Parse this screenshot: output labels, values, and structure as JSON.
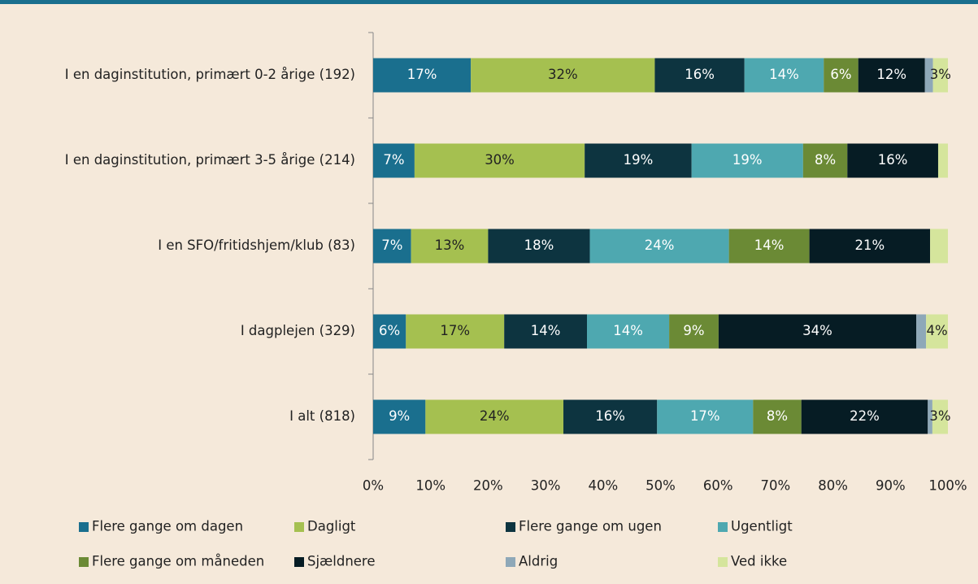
{
  "chart_data": {
    "type": "stacked_barh",
    "categories": [
      "I en daginstitution, primært 0-2 årige (192)",
      "I en daginstitution, primært 3-5 årige (214)",
      "I en SFO/fritidshjem/klub (83)",
      "I dagplejen (329)",
      "I alt (818)"
    ],
    "series": [
      {
        "name": "Flere gange om dagen",
        "color": "#1a6f8e",
        "values": [
          17.0,
          7.2,
          6.6,
          5.7,
          9.1
        ],
        "value_labels": [
          "17%",
          "7%",
          "7%",
          "6%",
          "9%"
        ]
      },
      {
        "name": "Dagligt",
        "color": "#a5c050",
        "values": [
          32.0,
          29.6,
          13.4,
          17.1,
          24.0
        ],
        "value_labels": [
          "32%",
          "30%",
          "13%",
          "17%",
          "24%"
        ]
      },
      {
        "name": "Flere gange om ugen",
        "color": "#0d3440",
        "values": [
          15.6,
          18.6,
          17.7,
          14.4,
          16.3
        ],
        "value_labels": [
          "16%",
          "19%",
          "18%",
          "14%",
          "16%"
        ]
      },
      {
        "name": "Ugentligt",
        "color": "#4ea8b0",
        "values": [
          13.8,
          19.4,
          24.2,
          14.3,
          16.7
        ],
        "value_labels": [
          "14%",
          "19%",
          "24%",
          "14%",
          "17%"
        ]
      },
      {
        "name": "Flere gange om måneden",
        "color": "#6b8a35",
        "values": [
          6.0,
          7.7,
          14.0,
          8.6,
          8.4
        ],
        "value_labels": [
          "6%",
          "8%",
          "14%",
          "9%",
          "8%"
        ]
      },
      {
        "name": "Sjældnere",
        "color": "#061c24",
        "values": [
          11.6,
          15.8,
          21.0,
          34.4,
          22.0
        ],
        "value_labels": [
          "12%",
          "16%",
          "21%",
          "34%",
          "22%"
        ]
      },
      {
        "name": "Aldrig",
        "color": "#8ea8b8",
        "values": [
          1.4,
          0,
          0,
          1.7,
          0.8
        ],
        "value_labels": [
          null,
          null,
          null,
          null,
          null
        ]
      },
      {
        "name": "Ved ikke",
        "color": "#d5e59c",
        "values": [
          2.6,
          1.7,
          3.1,
          3.8,
          2.7
        ],
        "value_labels": [
          "3%",
          null,
          null,
          "4%",
          "3%"
        ]
      }
    ],
    "xlim": [
      0,
      100
    ],
    "xticks": [
      {
        "value": 0,
        "label": "0%"
      },
      {
        "value": 10,
        "label": "10%"
      },
      {
        "value": 20,
        "label": "20%"
      },
      {
        "value": 30,
        "label": "30%"
      },
      {
        "value": 40,
        "label": "40%"
      },
      {
        "value": 50,
        "label": "50%"
      },
      {
        "value": 60,
        "label": "60%"
      },
      {
        "value": 70,
        "label": "70%"
      },
      {
        "value": 80,
        "label": "80%"
      },
      {
        "value": 90,
        "label": "90%"
      },
      {
        "value": 100,
        "label": "100%"
      }
    ],
    "grid": false
  }
}
